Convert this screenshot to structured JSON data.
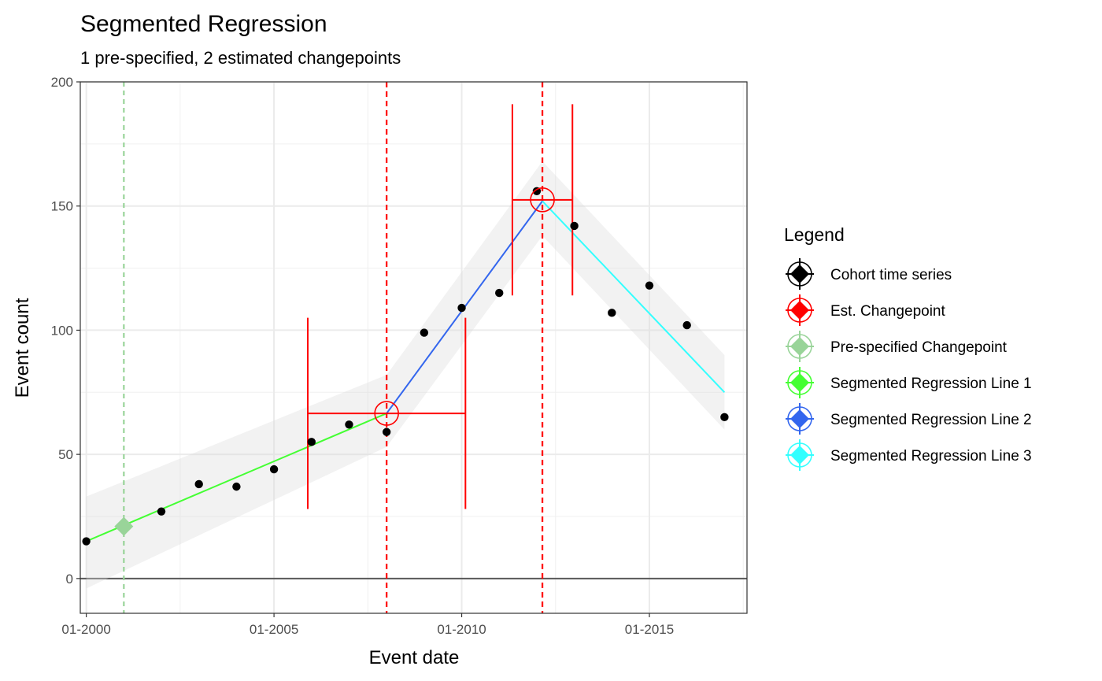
{
  "chart_data": {
    "type": "scatter",
    "title": "Segmented Regression",
    "subtitle": "1 pre-specified, 2 estimated changepoints",
    "xlabel": "Event date",
    "ylabel": "Event count",
    "xlim": [
      1999.84,
      2017.6
    ],
    "ylim": [
      -14,
      200
    ],
    "x_ticks": [
      {
        "value": 2000,
        "label": "01-2000"
      },
      {
        "value": 2005,
        "label": "01-2005"
      },
      {
        "value": 2010,
        "label": "01-2010"
      },
      {
        "value": 2015,
        "label": "01-2015"
      }
    ],
    "x_minor_ticks": [
      2002.5,
      2007.5,
      2012.5,
      2017.5
    ],
    "y_ticks": [
      0,
      50,
      100,
      150,
      200
    ],
    "y_minor_ticks": [
      25,
      75,
      125,
      175
    ],
    "grid": true,
    "zero_line": true,
    "series": [
      {
        "name": "Cohort time series",
        "kind": "points",
        "color": "#000000",
        "x": [
          2000,
          2001,
          2002,
          2003,
          2004,
          2005,
          2006,
          2007,
          2008,
          2009,
          2010,
          2011,
          2012,
          2013,
          2014,
          2015,
          2016,
          2017
        ],
        "y": [
          15,
          21,
          27,
          38,
          37,
          44,
          55,
          62,
          59,
          99,
          109,
          115,
          156,
          142,
          107,
          118,
          102,
          65
        ]
      },
      {
        "name": "Segmented Regression Line 1",
        "kind": "line",
        "color": "#44ff33",
        "x": [
          2000,
          2008
        ],
        "y": [
          15,
          66.5
        ],
        "ci_upper": [
          33,
          82
        ],
        "ci_lower": [
          -4,
          53
        ]
      },
      {
        "name": "Segmented Regression Line 2",
        "kind": "line",
        "color": "#3366ee",
        "x": [
          2008,
          2012.15
        ],
        "y": [
          66.5,
          152
        ],
        "ci_upper": [
          82,
          168
        ],
        "ci_lower": [
          53,
          138
        ]
      },
      {
        "name": "Segmented Regression Line 3",
        "kind": "line",
        "color": "#33ffff",
        "x": [
          2012.15,
          2017
        ],
        "y": [
          152,
          75
        ],
        "ci_upper": [
          168,
          90
        ],
        "ci_lower": [
          138,
          60
        ]
      }
    ],
    "changepoints": [
      {
        "name": "Pre-specified Changepoint",
        "estimated": false,
        "color": "#99d499",
        "x": 2001,
        "y": 21
      },
      {
        "name": "Est. Changepoint",
        "estimated": true,
        "color": "#ff0000",
        "x": 2008,
        "y": 66.5,
        "x_ci": [
          2005.9,
          2010.1
        ],
        "y_ci": [
          28,
          105
        ]
      },
      {
        "name": "Est. Changepoint",
        "estimated": true,
        "color": "#ff0000",
        "x": 2012.15,
        "y": 152.5,
        "x_ci": [
          2011.35,
          2012.95
        ],
        "y_ci": [
          114,
          191
        ]
      }
    ],
    "legend": {
      "title": "Legend",
      "placement": "right",
      "items": [
        {
          "label": "Cohort time series",
          "color": "#000000"
        },
        {
          "label": "Est. Changepoint",
          "color": "#ff0000"
        },
        {
          "label": "Pre-specified Changepoint",
          "color": "#99d499"
        },
        {
          "label": "Segmented Regression Line 1",
          "color": "#44ff33"
        },
        {
          "label": "Segmented Regression Line 2",
          "color": "#3366ee"
        },
        {
          "label": "Segmented Regression Line 3",
          "color": "#33ffff"
        }
      ]
    }
  }
}
